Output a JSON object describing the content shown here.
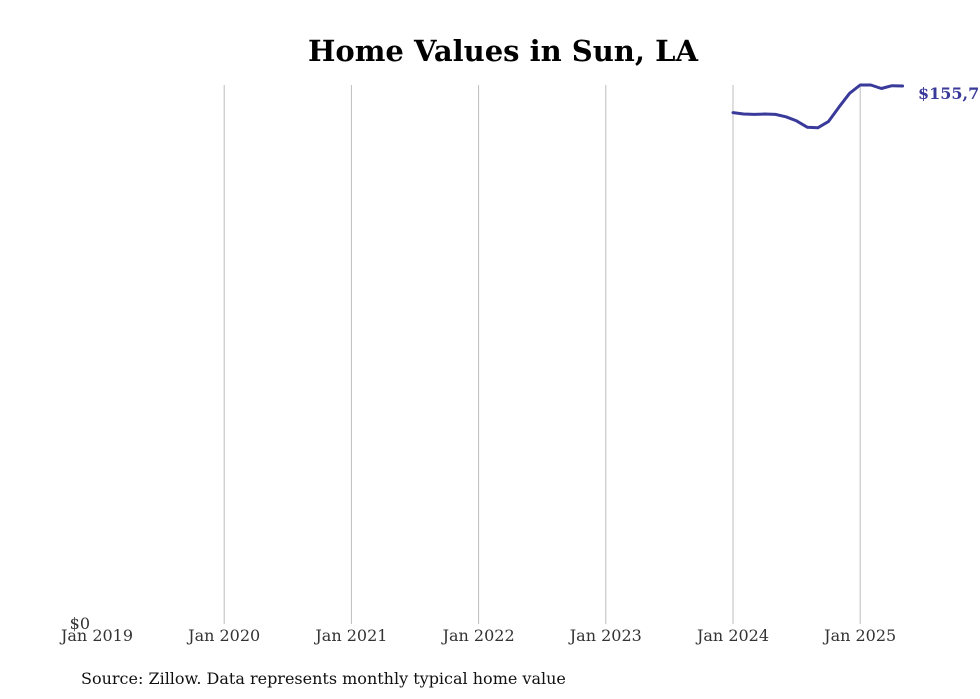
{
  "chart_data": {
    "type": "line",
    "title": "Home Values in Sun, LA",
    "xlabel": "",
    "ylabel": "",
    "x_ticks": [
      "Jan 2019",
      "Jan 2020",
      "Jan 2021",
      "Jan 2022",
      "Jan 2023",
      "Jan 2024",
      "Jan 2025"
    ],
    "y_ticks": [
      "$0"
    ],
    "xlim": [
      "2019-01",
      "2025-06"
    ],
    "ylim": [
      0,
      156000
    ],
    "grid": "vertical",
    "series": [
      {
        "color": "#3a3a9a",
        "x": [
          "2024-01",
          "2024-02",
          "2024-03",
          "2024-04",
          "2024-05",
          "2024-06",
          "2024-07",
          "2024-08",
          "2024-09",
          "2024-10",
          "2024-11",
          "2024-12",
          "2025-01",
          "2025-02",
          "2025-03",
          "2025-04",
          "2025-05"
        ],
        "values": [
          148000,
          147600,
          147500,
          147600,
          147500,
          146800,
          145600,
          143800,
          143600,
          145400,
          149600,
          153600,
          156000,
          156000,
          155000,
          155800,
          155700
        ]
      }
    ],
    "end_label": "$155,7"
  },
  "source_note": "Source: Zillow. Data represents monthly typical home value"
}
